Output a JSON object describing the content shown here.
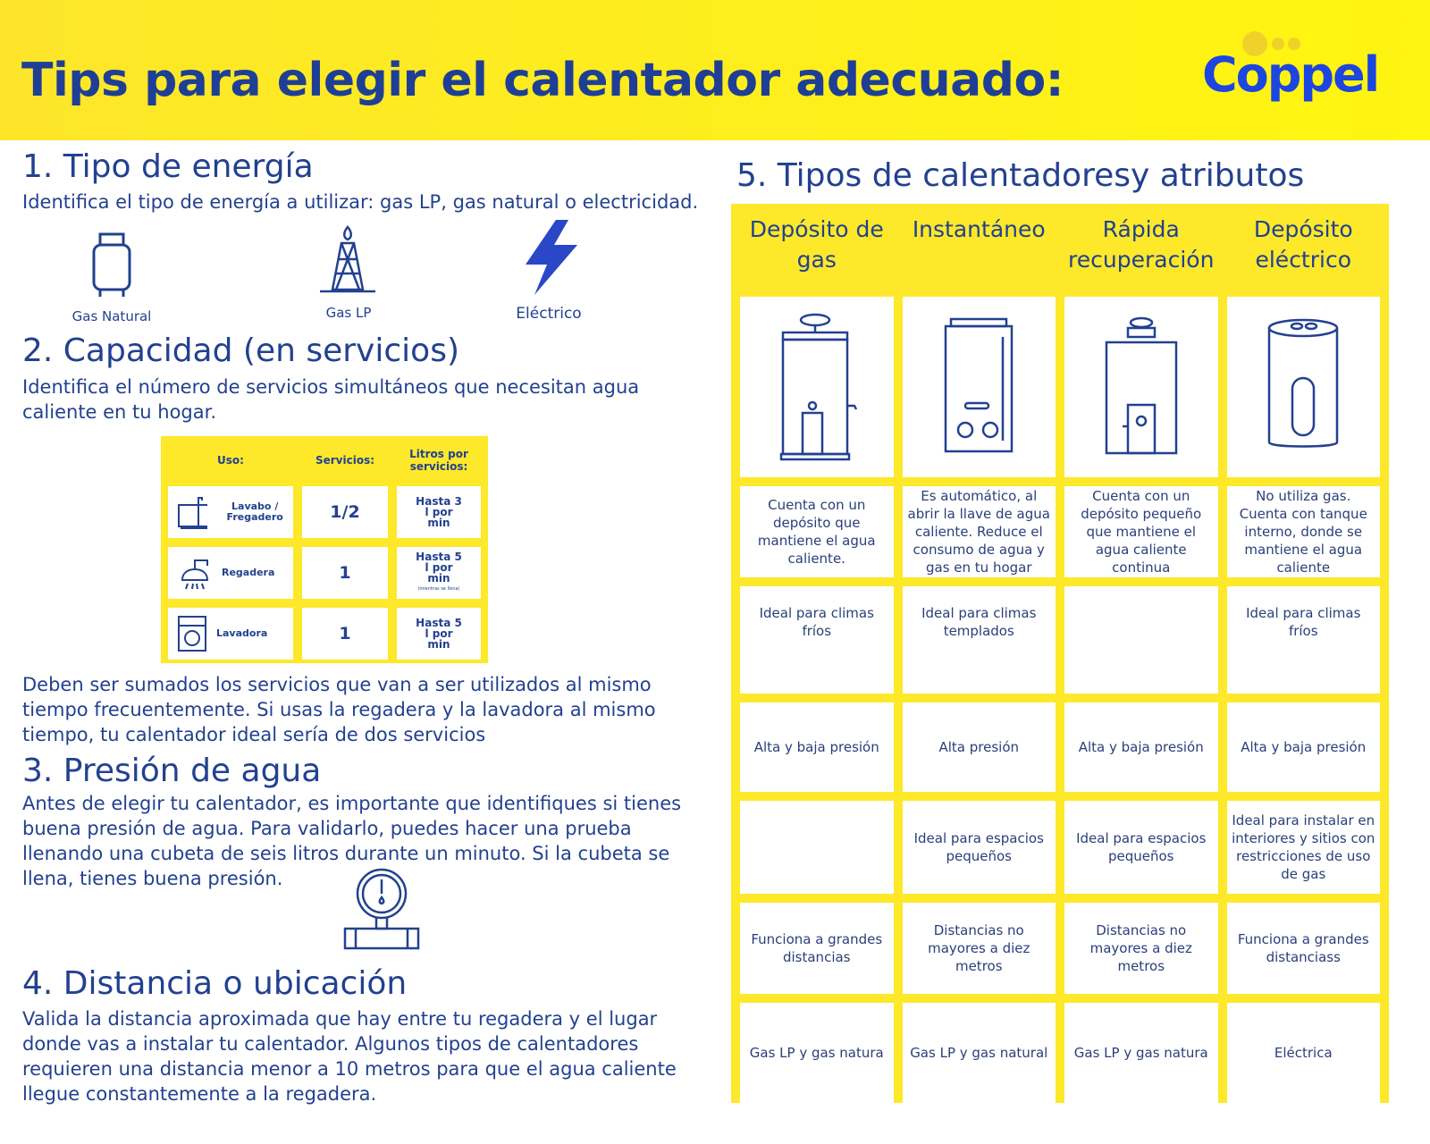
{
  "header": {
    "title": "Tips para elegir el calentador adecuado:",
    "logo": "Coppel"
  },
  "s1": {
    "title": "1. Tipo de energía",
    "text": "Identifica el tipo de energía a utilizar: gas LP, gas natural o electricidad.",
    "icons": [
      {
        "icon": "gas-tank-icon",
        "label": "Gas Natural"
      },
      {
        "icon": "gas-tower-icon",
        "label": "Gas LP"
      },
      {
        "icon": "lightning-icon",
        "label": "Eléctrico"
      }
    ]
  },
  "s2": {
    "title": "2. Capacidad (en servicios)",
    "text": "Identifica el número de servicios simultáneos que necesitan agua caliente en tu hogar.",
    "table": {
      "headers": [
        "Uso:",
        "Servicios:",
        "Litros por servicios:"
      ],
      "rows": [
        {
          "uso": "Lavabo / Fregadero",
          "servicios": "1/2",
          "litros": "Hasta 3 l por min",
          "note": ""
        },
        {
          "uso": "Regadera",
          "servicios": "1",
          "litros": "Hasta 5 l por min",
          "note": "(mientras se llena)"
        },
        {
          "uso": "Lavadora",
          "servicios": "1",
          "litros": "Hasta 5 l por min",
          "note": ""
        }
      ]
    },
    "after": "Deben ser sumados los servicios que van a ser utilizados al mismo tiempo frecuentemente. Si usas la regadera y la lavadora al mismo tiempo, tu calentador ideal sería de dos servicios"
  },
  "s3": {
    "title": "3. Presión de agua",
    "text": "Antes de elegir tu calentador, es importante que identifiques si tienes buena presión de agua. Para validarlo, puedes hacer una prueba llenando una cubeta de seis litros durante un minuto. Si la cubeta se llena, tienes buena presión."
  },
  "s4": {
    "title": "4. Distancia o ubicación",
    "text": "Valida la distancia aproximada que hay entre tu regadera y el lugar donde vas a instalar tu calentador. Algunos tipos de calentadores requieren una distancia menor a 10 metros para que el agua caliente llegue constantemente a la regadera."
  },
  "s5": {
    "title": "5. Tipos de calentadoresy atributos",
    "columns": [
      "Depósito de gas",
      "Instantáneo",
      "Rápida recuperación",
      "Depósito eléctrico"
    ],
    "rows": [
      [
        "Cuenta con un depósito que mantiene el agua caliente.",
        "Es automático, al abrir la llave de agua caliente. Reduce el consumo de agua y gas en tu hogar",
        "Cuenta con un depósito pequeño que mantiene el agua caliente continua",
        "No utiliza gas. Cuenta con tanque interno, donde se mantiene el agua caliente"
      ],
      [
        "Ideal para climas fríos",
        "Ideal para climas templados",
        "",
        "Ideal para climas fríos"
      ],
      [
        "Alta y baja presión",
        "Alta presión",
        "Alta y baja presión",
        "Alta y baja presión"
      ],
      [
        "",
        "Ideal para espacios pequeños",
        "Ideal para espacios pequeños",
        "Ideal para instalar en interiores y sitios con restricciones de uso de gas"
      ],
      [
        "Funciona a grandes distancias",
        "Distancias no mayores a diez metros",
        "Distancias no mayores a diez metros",
        "Funciona a grandes distanciass"
      ],
      [
        "Gas LP y gas natura",
        "Gas LP y gas natural",
        "Gas LP y gas natura",
        "Eléctrica"
      ]
    ]
  },
  "colors": {
    "yellow": "#fde82a",
    "text_blue": "#22418f",
    "logo_blue": "#1d45e0"
  }
}
